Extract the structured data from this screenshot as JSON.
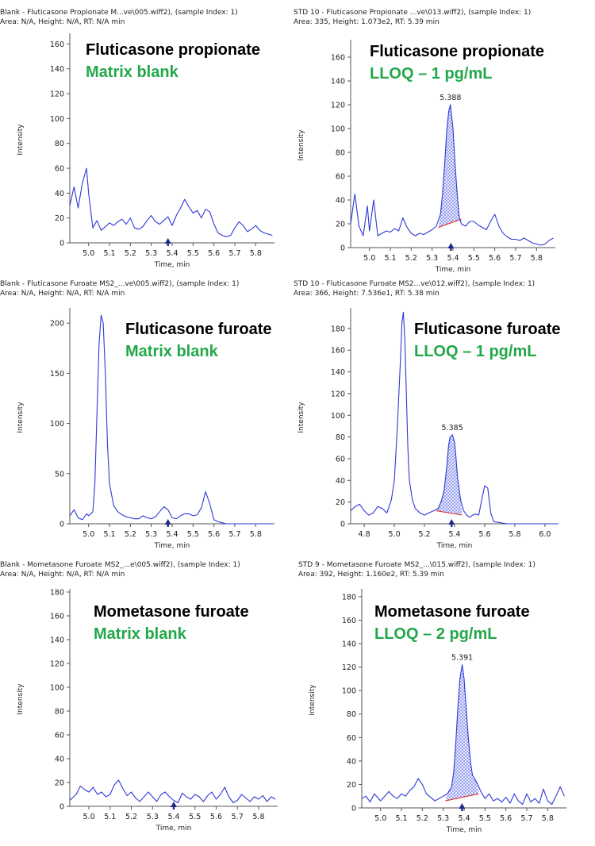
{
  "chart_data": [
    {
      "type": "line",
      "header_line1": "Blank - Fluticasone Propionate M...ve\\005.wiff2), (sample Index: 1)",
      "header_line2": "Area: N/A, Height: N/A, RT: N/A min",
      "compound": "Fluticasone propionate",
      "condition": "Matrix blank",
      "xlabel": "Time, min",
      "ylabel": "Intensity",
      "xlim": [
        4.91,
        5.89
      ],
      "ylim": [
        0,
        166
      ],
      "xticks": [
        5.0,
        5.1,
        5.2,
        5.3,
        5.4,
        5.5,
        5.6,
        5.7,
        5.8
      ],
      "xtick_labels": [
        "5.0",
        "5.1",
        "5.2",
        "5.3",
        "5.4",
        "5.5",
        "5.6",
        "5.7",
        "5.8"
      ],
      "yticks": [
        0,
        20,
        40,
        60,
        80,
        100,
        120,
        140,
        160
      ],
      "ytick_labels": [
        "0",
        "20",
        "40",
        "60",
        "80",
        "100",
        "120",
        "140",
        "160"
      ],
      "rt_marker": 5.38,
      "x": [
        4.91,
        4.93,
        4.95,
        4.97,
        4.99,
        5.0,
        5.02,
        5.04,
        5.06,
        5.08,
        5.1,
        5.12,
        5.14,
        5.16,
        5.18,
        5.2,
        5.22,
        5.24,
        5.26,
        5.28,
        5.3,
        5.32,
        5.34,
        5.36,
        5.38,
        5.4,
        5.42,
        5.44,
        5.46,
        5.48,
        5.5,
        5.52,
        5.54,
        5.56,
        5.58,
        5.6,
        5.62,
        5.64,
        5.66,
        5.68,
        5.7,
        5.72,
        5.74,
        5.76,
        5.78,
        5.8,
        5.82,
        5.84,
        5.86,
        5.88
      ],
      "y": [
        30,
        45,
        28,
        48,
        60,
        40,
        12,
        18,
        10,
        13,
        16,
        14,
        17,
        19,
        15,
        20,
        12,
        11,
        13,
        18,
        22,
        17,
        15,
        18,
        21,
        14,
        22,
        28,
        35,
        29,
        24,
        26,
        20,
        27,
        25,
        15,
        8,
        6,
        5,
        6,
        12,
        17,
        14,
        9,
        11,
        14,
        10,
        8,
        7,
        6
      ]
    },
    {
      "type": "line",
      "header_line1": "STD 10 - Fluticasone Propionate ...ve\\013.wiff2), (sample Index: 1)",
      "header_line2": "Area: 335, Height: 1.073e2, RT: 5.39 min",
      "compound": "Fluticasone propionate",
      "condition": "LLOQ – 1 pg/mL",
      "peak_label": "5.388",
      "peak_x": 5.388,
      "peak_y": 120,
      "peak_range": [
        5.33,
        5.44
      ],
      "xlabel": "Time, min",
      "ylabel": "Intensity",
      "xlim": [
        4.91,
        5.89
      ],
      "ylim": [
        0,
        172
      ],
      "xticks": [
        5.0,
        5.1,
        5.2,
        5.3,
        5.4,
        5.5,
        5.6,
        5.7,
        5.8
      ],
      "xtick_labels": [
        "5.0",
        "5.1",
        "5.2",
        "5.3",
        "5.4",
        "5.5",
        "5.6",
        "5.7",
        "5.8"
      ],
      "yticks": [
        0,
        20,
        40,
        60,
        80,
        100,
        120,
        140,
        160
      ],
      "ytick_labels": [
        "0",
        "20",
        "40",
        "60",
        "80",
        "100",
        "120",
        "140",
        "160"
      ],
      "rt_marker": 5.39,
      "x": [
        4.91,
        4.93,
        4.95,
        4.97,
        4.99,
        5.0,
        5.02,
        5.04,
        5.06,
        5.08,
        5.1,
        5.12,
        5.14,
        5.16,
        5.18,
        5.2,
        5.22,
        5.24,
        5.26,
        5.28,
        5.3,
        5.32,
        5.34,
        5.35,
        5.36,
        5.37,
        5.38,
        5.388,
        5.4,
        5.41,
        5.42,
        5.43,
        5.44,
        5.46,
        5.48,
        5.5,
        5.52,
        5.54,
        5.56,
        5.58,
        5.6,
        5.62,
        5.64,
        5.66,
        5.68,
        5.7,
        5.72,
        5.74,
        5.76,
        5.78,
        5.8,
        5.82,
        5.84,
        5.86,
        5.88
      ],
      "y": [
        20,
        45,
        18,
        10,
        35,
        14,
        40,
        10,
        12,
        14,
        13,
        16,
        14,
        25,
        17,
        12,
        10,
        12,
        11,
        13,
        15,
        18,
        28,
        45,
        70,
        98,
        115,
        120,
        100,
        70,
        45,
        25,
        20,
        18,
        22,
        22,
        19,
        17,
        15,
        22,
        28,
        18,
        12,
        9,
        7,
        7,
        6,
        8,
        6,
        4,
        3,
        2,
        3,
        6,
        8
      ],
      "baseline": [
        [
          5.33,
          17
        ],
        [
          5.44,
          24
        ]
      ]
    },
    {
      "type": "line",
      "header_line1": "Blank - Fluticasone Furoate MS2_...ve\\005.wiff2), (sample Index: 1)",
      "header_line2": "Area: N/A, Height: N/A, RT: N/A min",
      "compound": "Fluticasone furoate",
      "condition": "Matrix blank",
      "xlabel": "Time, min",
      "ylabel": "Intensity",
      "xlim": [
        4.91,
        5.89
      ],
      "ylim": [
        0,
        212
      ],
      "xticks": [
        5.0,
        5.1,
        5.2,
        5.3,
        5.4,
        5.5,
        5.6,
        5.7,
        5.8
      ],
      "xtick_labels": [
        "5.0",
        "5.1",
        "5.2",
        "5.3",
        "5.4",
        "5.5",
        "5.6",
        "5.7",
        "5.8"
      ],
      "yticks": [
        0,
        50,
        100,
        150,
        200
      ],
      "ytick_labels": [
        "0",
        "50",
        "100",
        "150",
        "200"
      ],
      "rt_marker": 5.38,
      "x": [
        4.91,
        4.93,
        4.95,
        4.97,
        4.99,
        5.0,
        5.02,
        5.03,
        5.04,
        5.05,
        5.06,
        5.07,
        5.08,
        5.09,
        5.1,
        5.12,
        5.14,
        5.16,
        5.18,
        5.2,
        5.22,
        5.24,
        5.26,
        5.28,
        5.3,
        5.32,
        5.34,
        5.36,
        5.38,
        5.4,
        5.42,
        5.44,
        5.46,
        5.48,
        5.5,
        5.52,
        5.54,
        5.56,
        5.58,
        5.6,
        5.62,
        5.64,
        5.66,
        5.7,
        5.74,
        5.78,
        5.82,
        5.86,
        5.88
      ],
      "y": [
        8,
        14,
        6,
        4,
        10,
        8,
        12,
        40,
        110,
        180,
        208,
        200,
        150,
        80,
        40,
        18,
        12,
        9,
        7,
        6,
        5,
        5,
        8,
        6,
        5,
        7,
        12,
        17,
        14,
        6,
        5,
        8,
        10,
        10,
        8,
        9,
        16,
        32,
        20,
        4,
        2,
        1,
        0,
        0,
        0,
        0,
        0,
        0,
        0
      ]
    },
    {
      "type": "line",
      "header_line1": "STD 10 - Fluticasone Furoate MS2...ve\\012.wiff2), (sample Index: 1)",
      "header_line2": "Area: 366, Height: 7.536e1, RT: 5.38 min",
      "compound": "Fluticasone furoate",
      "condition": "LLOQ – 1 pg/mL",
      "peak_label": "5.385",
      "peak_x": 5.385,
      "peak_y": 82,
      "peak_range": [
        5.28,
        5.45
      ],
      "xlabel": "Time, min",
      "ylabel": "Intensity",
      "xlim": [
        4.71,
        6.09
      ],
      "ylim": [
        0,
        196
      ],
      "xticks": [
        4.8,
        5.0,
        5.2,
        5.4,
        5.6,
        5.8,
        6.0
      ],
      "xtick_labels": [
        "4.8",
        "5.0",
        "5.2",
        "5.4",
        "5.6",
        "5.8",
        "6.0"
      ],
      "yticks": [
        0,
        20,
        40,
        60,
        80,
        100,
        120,
        140,
        160,
        180
      ],
      "ytick_labels": [
        "0",
        "20",
        "40",
        "60",
        "80",
        "100",
        "120",
        "140",
        "160",
        "180"
      ],
      "rt_marker": 5.38,
      "x": [
        4.71,
        4.74,
        4.77,
        4.8,
        4.83,
        4.86,
        4.89,
        4.92,
        4.95,
        4.98,
        5.0,
        5.02,
        5.04,
        5.05,
        5.06,
        5.07,
        5.08,
        5.09,
        5.1,
        5.12,
        5.14,
        5.17,
        5.2,
        5.23,
        5.26,
        5.29,
        5.31,
        5.33,
        5.35,
        5.36,
        5.37,
        5.385,
        5.4,
        5.41,
        5.42,
        5.44,
        5.46,
        5.48,
        5.5,
        5.52,
        5.54,
        5.56,
        5.58,
        5.6,
        5.62,
        5.64,
        5.66,
        5.7,
        5.75,
        5.8,
        5.9,
        6.0,
        6.09
      ],
      "y": [
        12,
        16,
        18,
        12,
        8,
        10,
        16,
        14,
        10,
        22,
        40,
        90,
        150,
        185,
        195,
        170,
        120,
        70,
        40,
        22,
        14,
        10,
        8,
        10,
        12,
        14,
        20,
        30,
        55,
        72,
        80,
        82,
        75,
        60,
        42,
        22,
        12,
        8,
        6,
        8,
        9,
        8,
        22,
        35,
        33,
        10,
        2,
        1,
        0,
        0,
        0,
        0,
        0
      ],
      "baseline": [
        [
          5.28,
          12
        ],
        [
          5.45,
          8
        ]
      ]
    },
    {
      "type": "line",
      "header_line1": "Blank - Mometasone Furoate MS2_...e\\005.wiff2), (sample Index: 1)",
      "header_line2": "Area: N/A, Height: N/A, RT: N/A min",
      "compound": "Mometasone furoate",
      "condition": "Matrix blank",
      "xlabel": "Time, min",
      "ylabel": "Intensity",
      "xlim": [
        4.91,
        5.89
      ],
      "ylim": [
        0,
        180
      ],
      "xticks": [
        5.0,
        5.1,
        5.2,
        5.3,
        5.4,
        5.5,
        5.6,
        5.7,
        5.8
      ],
      "xtick_labels": [
        "5.0",
        "5.1",
        "5.2",
        "5.3",
        "5.4",
        "5.5",
        "5.6",
        "5.7",
        "5.8"
      ],
      "yticks": [
        0,
        20,
        40,
        60,
        80,
        100,
        120,
        140,
        160,
        180
      ],
      "ytick_labels": [
        "0",
        "20",
        "40",
        "60",
        "80",
        "100",
        "120",
        "140",
        "160",
        "180"
      ],
      "rt_marker": 5.4,
      "x": [
        4.91,
        4.94,
        4.96,
        4.98,
        5.0,
        5.02,
        5.04,
        5.06,
        5.08,
        5.1,
        5.12,
        5.14,
        5.16,
        5.18,
        5.2,
        5.22,
        5.24,
        5.26,
        5.28,
        5.3,
        5.32,
        5.34,
        5.36,
        5.38,
        5.4,
        5.42,
        5.44,
        5.46,
        5.48,
        5.5,
        5.52,
        5.54,
        5.56,
        5.58,
        5.6,
        5.62,
        5.64,
        5.66,
        5.68,
        5.7,
        5.72,
        5.74,
        5.76,
        5.78,
        5.8,
        5.82,
        5.84,
        5.86,
        5.88
      ],
      "y": [
        5,
        10,
        17,
        14,
        12,
        16,
        10,
        12,
        8,
        10,
        18,
        22,
        15,
        9,
        12,
        7,
        4,
        8,
        12,
        8,
        4,
        10,
        12,
        8,
        5,
        3,
        11,
        8,
        6,
        10,
        8,
        4,
        9,
        12,
        6,
        10,
        16,
        8,
        3,
        5,
        10,
        7,
        4,
        8,
        6,
        9,
        4,
        8,
        6
      ]
    },
    {
      "type": "line",
      "header_line1": "STD 9 - Mometasone Furoate MS2_...\\015.wiff2), (sample Index: 1)",
      "header_line2": "Area: 392, Height: 1.160e2, RT: 5.39 min",
      "compound": "Mometasone furoate",
      "condition": "LLOQ – 2 pg/mL",
      "peak_label": "5.391",
      "peak_x": 5.391,
      "peak_y": 122,
      "peak_range": [
        5.31,
        5.47
      ],
      "xlabel": "Time, min",
      "ylabel": "Intensity",
      "xlim": [
        4.91,
        5.89
      ],
      "ylim": [
        0,
        184
      ],
      "xticks": [
        5.0,
        5.1,
        5.2,
        5.3,
        5.4,
        5.5,
        5.6,
        5.7,
        5.8
      ],
      "xtick_labels": [
        "5.0",
        "5.1",
        "5.2",
        "5.3",
        "5.4",
        "5.5",
        "5.6",
        "5.7",
        "5.8"
      ],
      "yticks": [
        0,
        20,
        40,
        60,
        80,
        100,
        120,
        140,
        160,
        180
      ],
      "ytick_labels": [
        "0",
        "20",
        "40",
        "60",
        "80",
        "100",
        "120",
        "140",
        "160",
        "180"
      ],
      "rt_marker": 5.39,
      "x": [
        4.91,
        4.93,
        4.95,
        4.97,
        4.99,
        5.0,
        5.02,
        5.04,
        5.06,
        5.08,
        5.1,
        5.12,
        5.14,
        5.16,
        5.18,
        5.2,
        5.22,
        5.24,
        5.26,
        5.28,
        5.3,
        5.32,
        5.34,
        5.35,
        5.36,
        5.37,
        5.38,
        5.391,
        5.4,
        5.41,
        5.42,
        5.43,
        5.44,
        5.46,
        5.48,
        5.5,
        5.52,
        5.54,
        5.56,
        5.58,
        5.6,
        5.62,
        5.64,
        5.66,
        5.68,
        5.7,
        5.72,
        5.74,
        5.76,
        5.78,
        5.8,
        5.82,
        5.84,
        5.86,
        5.88
      ],
      "y": [
        8,
        10,
        5,
        12,
        8,
        6,
        10,
        14,
        10,
        8,
        12,
        10,
        15,
        18,
        25,
        20,
        12,
        9,
        6,
        8,
        10,
        12,
        18,
        30,
        55,
        85,
        110,
        122,
        110,
        85,
        60,
        40,
        28,
        22,
        14,
        8,
        12,
        6,
        8,
        5,
        9,
        4,
        12,
        6,
        3,
        12,
        5,
        8,
        4,
        16,
        6,
        3,
        10,
        18,
        10
      ],
      "baseline": [
        [
          5.31,
          6
        ],
        [
          5.47,
          12
        ]
      ]
    }
  ]
}
